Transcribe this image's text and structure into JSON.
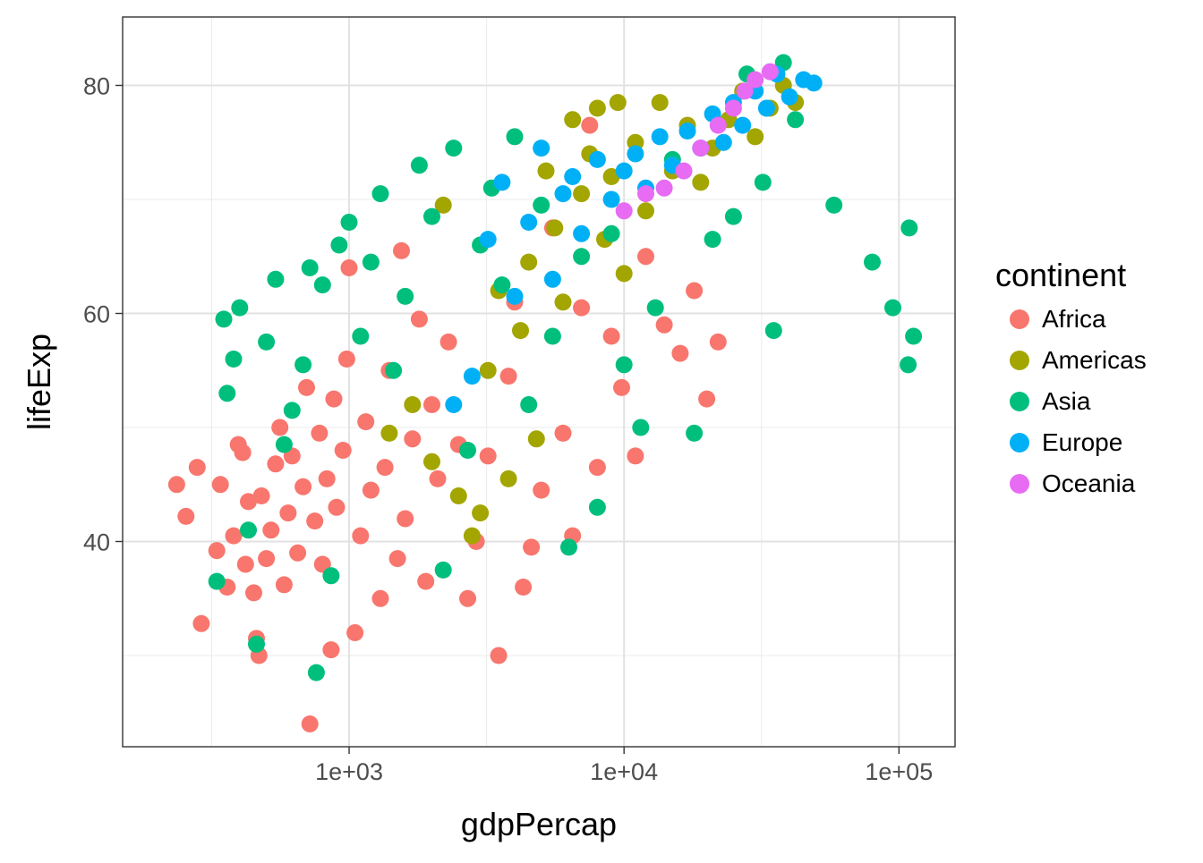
{
  "chart_data": {
    "type": "scatter",
    "title": "",
    "xlabel": "gdpPercap",
    "ylabel": "lifeExp",
    "x_scale": "log10",
    "xlim": [
      150,
      160000
    ],
    "ylim": [
      22,
      86
    ],
    "x_ticks": [
      1000,
      10000,
      100000
    ],
    "x_tick_labels": [
      "1e+03",
      "1e+04",
      "1e+05"
    ],
    "y_ticks": [
      40,
      60,
      80
    ],
    "y_tick_labels": [
      "40",
      "60",
      "80"
    ],
    "grid": true,
    "legend": {
      "title": "continent",
      "placement": "right",
      "items": [
        {
          "label": "Africa",
          "color": "#F8766D"
        },
        {
          "label": "Americas",
          "color": "#A3A500"
        },
        {
          "label": "Asia",
          "color": "#00BF7D"
        },
        {
          "label": "Europe",
          "color": "#00B0F6"
        },
        {
          "label": "Oceania",
          "color": "#E76BF3"
        }
      ]
    },
    "series": [
      {
        "name": "Africa",
        "color": "#F8766D",
        "points": [
          [
            236,
            45.0
          ],
          [
            280,
            46.5
          ],
          [
            255,
            42.2
          ],
          [
            290,
            32.8
          ],
          [
            330,
            39.2
          ],
          [
            340,
            45.0
          ],
          [
            360,
            36.0
          ],
          [
            380,
            40.5
          ],
          [
            395,
            48.5
          ],
          [
            410,
            47.8
          ],
          [
            420,
            38.0
          ],
          [
            430,
            43.5
          ],
          [
            450,
            35.5
          ],
          [
            460,
            31.5
          ],
          [
            470,
            30.0
          ],
          [
            480,
            44.0
          ],
          [
            500,
            38.5
          ],
          [
            520,
            41.0
          ],
          [
            540,
            46.8
          ],
          [
            560,
            50.0
          ],
          [
            580,
            36.2
          ],
          [
            600,
            42.5
          ],
          [
            620,
            47.5
          ],
          [
            650,
            39.0
          ],
          [
            680,
            44.8
          ],
          [
            700,
            53.5
          ],
          [
            720,
            24.0
          ],
          [
            750,
            41.8
          ],
          [
            780,
            49.5
          ],
          [
            800,
            38.0
          ],
          [
            830,
            45.5
          ],
          [
            860,
            30.5
          ],
          [
            880,
            52.5
          ],
          [
            900,
            43.0
          ],
          [
            950,
            48.0
          ],
          [
            980,
            56.0
          ],
          [
            1000,
            64.0
          ],
          [
            1050,
            32.0
          ],
          [
            1100,
            40.5
          ],
          [
            1150,
            50.5
          ],
          [
            1200,
            44.5
          ],
          [
            1300,
            35.0
          ],
          [
            1350,
            46.5
          ],
          [
            1400,
            55.0
          ],
          [
            1500,
            38.5
          ],
          [
            1550,
            65.5
          ],
          [
            1600,
            42.0
          ],
          [
            1700,
            49.0
          ],
          [
            1800,
            59.5
          ],
          [
            1900,
            36.5
          ],
          [
            2000,
            52.0
          ],
          [
            2100,
            45.5
          ],
          [
            2300,
            57.5
          ],
          [
            2500,
            48.5
          ],
          [
            2700,
            35.0
          ],
          [
            2900,
            40.0
          ],
          [
            3200,
            47.5
          ],
          [
            3500,
            30.0
          ],
          [
            3800,
            54.5
          ],
          [
            4000,
            61.0
          ],
          [
            4300,
            36.0
          ],
          [
            4600,
            39.5
          ],
          [
            5000,
            44.5
          ],
          [
            5500,
            67.5
          ],
          [
            6000,
            49.5
          ],
          [
            6500,
            40.5
          ],
          [
            7000,
            60.5
          ],
          [
            7500,
            76.5
          ],
          [
            8000,
            46.5
          ],
          [
            9000,
            58.0
          ],
          [
            9800,
            53.5
          ],
          [
            11000,
            47.5
          ],
          [
            12000,
            65.0
          ],
          [
            14000,
            59.0
          ],
          [
            16000,
            56.5
          ],
          [
            18000,
            62.0
          ],
          [
            20000,
            52.5
          ],
          [
            22000,
            57.5
          ]
        ]
      },
      {
        "name": "Americas",
        "color": "#A3A500",
        "points": [
          [
            1400,
            49.5
          ],
          [
            1700,
            52.0
          ],
          [
            2000,
            47.0
          ],
          [
            2200,
            69.5
          ],
          [
            2500,
            44.0
          ],
          [
            2800,
            40.5
          ],
          [
            3000,
            42.5
          ],
          [
            3200,
            55.0
          ],
          [
            3500,
            62.0
          ],
          [
            3800,
            45.5
          ],
          [
            4200,
            58.5
          ],
          [
            4500,
            64.5
          ],
          [
            4800,
            49.0
          ],
          [
            5200,
            72.5
          ],
          [
            5600,
            67.5
          ],
          [
            6000,
            61.0
          ],
          [
            6500,
            77.0
          ],
          [
            7000,
            70.5
          ],
          [
            7500,
            74.0
          ],
          [
            8000,
            78.0
          ],
          [
            8500,
            66.5
          ],
          [
            9000,
            72.0
          ],
          [
            9500,
            78.5
          ],
          [
            10000,
            63.5
          ],
          [
            11000,
            75.0
          ],
          [
            12000,
            69.0
          ],
          [
            13500,
            78.5
          ],
          [
            15000,
            72.5
          ],
          [
            17000,
            76.5
          ],
          [
            19000,
            71.5
          ],
          [
            21000,
            74.5
          ],
          [
            24000,
            77.0
          ],
          [
            27000,
            79.5
          ],
          [
            30000,
            75.5
          ],
          [
            34000,
            78.0
          ],
          [
            38000,
            80.0
          ],
          [
            42000,
            78.5
          ]
        ]
      },
      {
        "name": "Asia",
        "color": "#00BF7D",
        "points": [
          [
            330,
            36.5
          ],
          [
            350,
            59.5
          ],
          [
            360,
            53.0
          ],
          [
            380,
            56.0
          ],
          [
            400,
            60.5
          ],
          [
            430,
            41.0
          ],
          [
            460,
            31.0
          ],
          [
            500,
            57.5
          ],
          [
            540,
            63.0
          ],
          [
            580,
            48.5
          ],
          [
            620,
            51.5
          ],
          [
            680,
            55.5
          ],
          [
            720,
            64.0
          ],
          [
            760,
            28.5
          ],
          [
            800,
            62.5
          ],
          [
            860,
            37.0
          ],
          [
            920,
            66.0
          ],
          [
            1000,
            68.0
          ],
          [
            1100,
            58.0
          ],
          [
            1200,
            64.5
          ],
          [
            1300,
            70.5
          ],
          [
            1450,
            55.0
          ],
          [
            1600,
            61.5
          ],
          [
            1800,
            73.0
          ],
          [
            2000,
            68.5
          ],
          [
            2200,
            37.5
          ],
          [
            2400,
            74.5
          ],
          [
            2700,
            48.0
          ],
          [
            3000,
            66.0
          ],
          [
            3300,
            71.0
          ],
          [
            3600,
            62.5
          ],
          [
            4000,
            75.5
          ],
          [
            4500,
            52.0
          ],
          [
            5000,
            69.5
          ],
          [
            5500,
            58.0
          ],
          [
            6300,
            39.5
          ],
          [
            7000,
            65.0
          ],
          [
            8000,
            43.0
          ],
          [
            9000,
            67.0
          ],
          [
            10000,
            55.5
          ],
          [
            11500,
            50.0
          ],
          [
            13000,
            60.5
          ],
          [
            15000,
            73.5
          ],
          [
            18000,
            49.5
          ],
          [
            21000,
            66.5
          ],
          [
            25000,
            68.5
          ],
          [
            28000,
            81.0
          ],
          [
            32000,
            71.5
          ],
          [
            35000,
            58.5
          ],
          [
            38000,
            82.0
          ],
          [
            42000,
            77.0
          ],
          [
            58000,
            69.5
          ],
          [
            80000,
            64.5
          ],
          [
            95000,
            60.5
          ],
          [
            108000,
            55.5
          ],
          [
            109000,
            67.5
          ],
          [
            113000,
            58.0
          ]
        ]
      },
      {
        "name": "Europe",
        "color": "#00B0F6",
        "points": [
          [
            2400,
            52.0
          ],
          [
            2800,
            54.5
          ],
          [
            3200,
            66.5
          ],
          [
            3600,
            71.5
          ],
          [
            4000,
            61.5
          ],
          [
            4500,
            68.0
          ],
          [
            5000,
            74.5
          ],
          [
            5500,
            63.0
          ],
          [
            6000,
            70.5
          ],
          [
            6500,
            72.0
          ],
          [
            7000,
            67.0
          ],
          [
            8000,
            73.5
          ],
          [
            9000,
            70.0
          ],
          [
            10000,
            72.5
          ],
          [
            11000,
            74.0
          ],
          [
            12000,
            71.0
          ],
          [
            13500,
            75.5
          ],
          [
            15000,
            73.0
          ],
          [
            17000,
            76.0
          ],
          [
            19000,
            74.5
          ],
          [
            21000,
            77.5
          ],
          [
            23000,
            75.0
          ],
          [
            25000,
            78.5
          ],
          [
            27000,
            76.5
          ],
          [
            30000,
            79.5
          ],
          [
            33000,
            78.0
          ],
          [
            36000,
            81.0
          ],
          [
            40000,
            79.0
          ],
          [
            45000,
            80.5
          ],
          [
            49000,
            80.2
          ]
        ]
      },
      {
        "name": "Oceania",
        "color": "#E76BF3",
        "points": [
          [
            10000,
            69.0
          ],
          [
            12000,
            70.5
          ],
          [
            14000,
            71.0
          ],
          [
            16500,
            72.5
          ],
          [
            19000,
            74.5
          ],
          [
            22000,
            76.5
          ],
          [
            25000,
            78.0
          ],
          [
            27500,
            79.5
          ],
          [
            30000,
            80.5
          ],
          [
            34000,
            81.2
          ]
        ]
      }
    ]
  }
}
